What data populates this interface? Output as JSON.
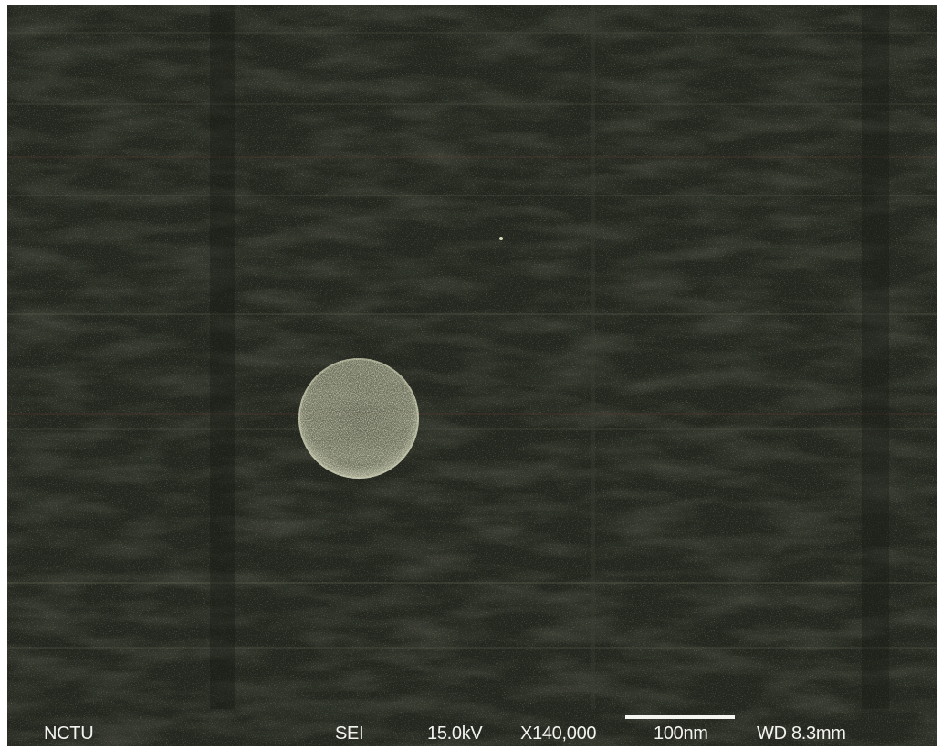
{
  "image": {
    "kind": "sem-micrograph",
    "background_color": "#24271f",
    "particle_color": "#c9cbb0"
  },
  "databar": {
    "institution": "NCTU",
    "detector": "SEI",
    "voltage": "15.0kV",
    "magnification": "X140,000",
    "scale_label": "100nm",
    "working_distance": "WD 8.3mm"
  }
}
